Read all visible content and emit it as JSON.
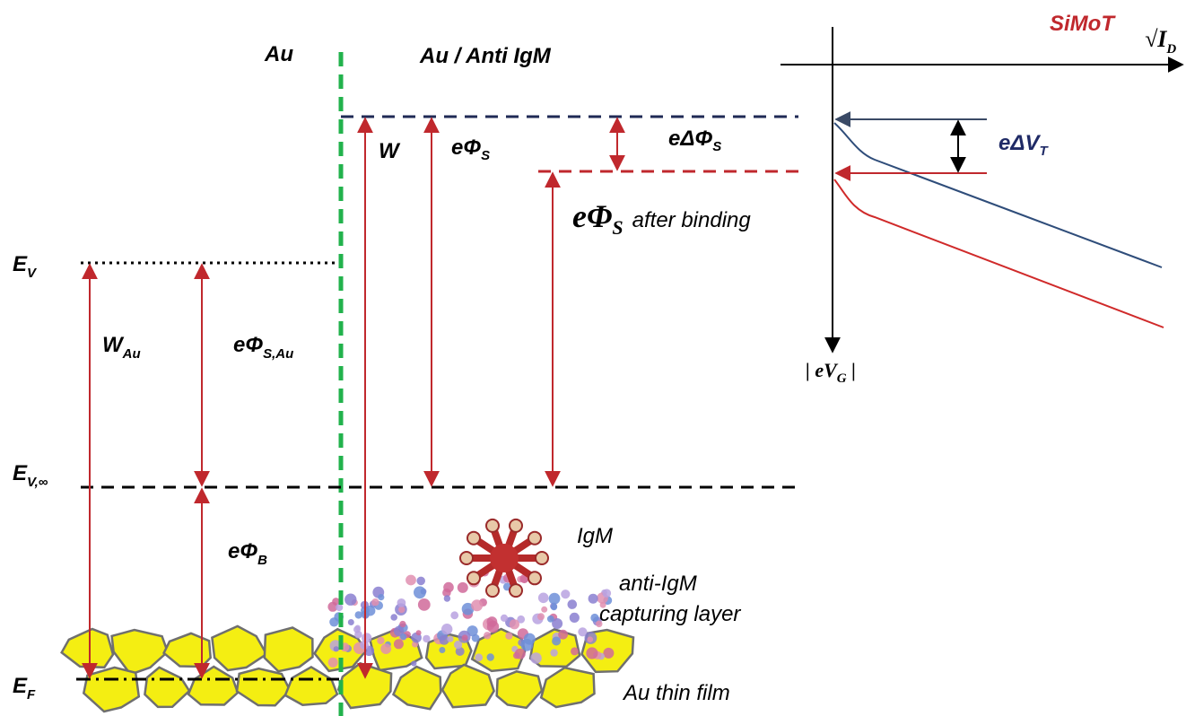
{
  "header": {
    "left": "Au",
    "middle": "Au / Anti IgM",
    "simot": "SiMoT",
    "id_axis": {
      "main": "√I",
      "sub": "D"
    }
  },
  "levels": {
    "ev": {
      "main": "E",
      "sub": "V"
    },
    "ev_inf": {
      "main": "E",
      "sub": "V,∞"
    },
    "ef": {
      "main": "E",
      "sub": "F"
    }
  },
  "quantities": {
    "w": {
      "main": "W"
    },
    "phi_s": {
      "main": "eΦ",
      "sub": "S"
    },
    "delta_phi_s": {
      "main": "eΔΦ",
      "sub": "S"
    },
    "delta_vt": {
      "main": "eΔV",
      "sub": "T"
    },
    "phi_s_after": {
      "main": "eΦ",
      "sub": "S",
      "tail": "after binding"
    },
    "w_au": {
      "main": "W",
      "sub": "Au"
    },
    "phi_s_au": {
      "main": "eΦ",
      "sub": "S,Au"
    },
    "phi_b": {
      "main": "eΦ",
      "sub": "B"
    },
    "vg_axis": {
      "main": "| eV",
      "sub": "G",
      "tail": " |"
    }
  },
  "annotations": {
    "igm": "IgM",
    "capture_1": "anti-IgM",
    "capture_2": "capturing layer",
    "film": "Au thin film"
  }
}
